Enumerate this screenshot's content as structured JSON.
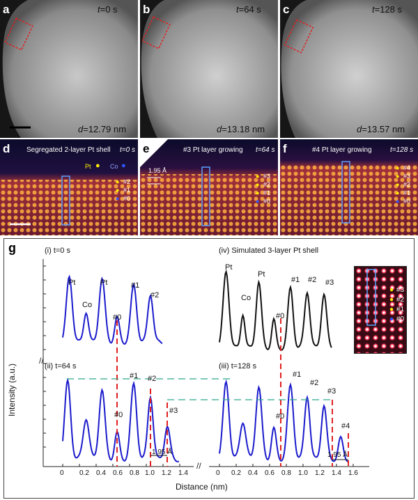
{
  "top_panels": [
    {
      "label": "a",
      "time_var": "t",
      "time_val": "=0 s",
      "d_var": "d",
      "d_val": "=12.79 nm"
    },
    {
      "label": "b",
      "time_var": "t",
      "time_val": "=64 s",
      "d_var": "d",
      "d_val": "=13.18 nm"
    },
    {
      "label": "c",
      "time_var": "t",
      "time_val": "=128 s",
      "d_var": "d",
      "d_val": "=13.57 nm"
    }
  ],
  "mid_panels": [
    {
      "label": "d",
      "caption": "Segregated 2-layer Pt shell",
      "time": "t=0 s",
      "legend": [
        "#2",
        "#1",
        "#0"
      ],
      "pt": "Pt",
      "co": "Co"
    },
    {
      "label": "e",
      "caption": "#3 Pt layer growing",
      "time": "t=64 s",
      "legend": [
        "#3",
        "#2",
        "#1",
        "#0"
      ],
      "spacing": "1.95 Å"
    },
    {
      "label": "f",
      "caption": "#4 Pt layer growing",
      "time": "t=128 s",
      "legend": [
        "#4",
        "#3",
        "#2",
        "#1",
        "#0"
      ]
    }
  ],
  "chart_data": {
    "type": "line",
    "panel_label": "g",
    "ylabel": "Intensity (a.u.)",
    "xlabel": "Distance (nm)",
    "xticks": [
      "0",
      "0.2",
      "0.4",
      "0.6",
      "0.8",
      "1.0",
      "1.2",
      "1.4"
    ],
    "xticks_right": [
      "0",
      "0.2",
      "0.4",
      "0.6",
      "0.8",
      "1.0",
      "1.2",
      "1.4",
      "1.6"
    ],
    "subplots": [
      {
        "title": "(i) t=0 s",
        "peaks": [
          {
            "label": "Pt",
            "x": 0.08
          },
          {
            "label": "Co",
            "x": 0.28
          },
          {
            "label": "Pt",
            "x": 0.47
          },
          {
            "label": "#0",
            "x": 0.65
          },
          {
            "label": "#1",
            "x": 0.85
          },
          {
            "label": "#2",
            "x": 1.05
          }
        ]
      },
      {
        "title": "(iv) Simulated 3-layer Pt shell",
        "peaks": [
          {
            "label": "Pt",
            "x": 0.08
          },
          {
            "label": "Co",
            "x": 0.28
          },
          {
            "label": "Pt",
            "x": 0.47
          },
          {
            "label": "#0",
            "x": 0.65
          },
          {
            "label": "#1",
            "x": 0.85
          },
          {
            "label": "#2",
            "x": 1.05
          },
          {
            "label": "#3",
            "x": 1.25
          }
        ]
      },
      {
        "title": "(ii) t=64 s",
        "peaks": [
          {
            "label": "#0",
            "x": 0.65
          },
          {
            "label": "#1",
            "x": 0.85
          },
          {
            "label": "#2",
            "x": 1.05
          },
          {
            "label": "#3",
            "x": 1.25
          }
        ],
        "spacing": "1.95 Å"
      },
      {
        "title": "(iii) t=128 s",
        "peaks": [
          {
            "label": "#0",
            "x": 0.65
          },
          {
            "label": "#1",
            "x": 0.85
          },
          {
            "label": "#2",
            "x": 1.05
          },
          {
            "label": "#3",
            "x": 1.25
          },
          {
            "label": "#4",
            "x": 1.45
          }
        ],
        "spacing": "1.95 Å"
      }
    ],
    "inset_legend": [
      "#3",
      "#2",
      "#1",
      "#0"
    ]
  },
  "colors": {
    "profile": "#1a1acc",
    "simulated": "#111111",
    "marker": "#e02020",
    "guide": "#2aa88a",
    "pt": "#ffee00",
    "co": "#3355ff"
  }
}
